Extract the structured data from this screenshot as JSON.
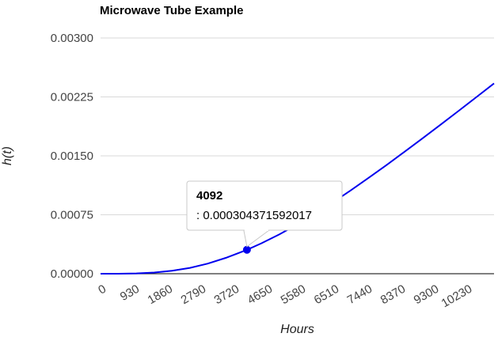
{
  "chart_data": {
    "type": "line",
    "title": "Microwave Tube Example",
    "xlabel": "Hours",
    "ylabel": "h(t)",
    "x_ticks": [
      "0",
      "930",
      "1860",
      "2790",
      "3720",
      "4650",
      "5580",
      "6510",
      "7440",
      "8370",
      "9300",
      "10230"
    ],
    "y_ticks": [
      "0.00000",
      "0.00075",
      "0.00150",
      "0.00225",
      "0.00300"
    ],
    "xlim": [
      0,
      11000
    ],
    "ylim": [
      0,
      0.003
    ],
    "grid": true,
    "series": [
      {
        "color": "#0000ee",
        "x": [
          0,
          500,
          1000,
          1500,
          2000,
          2500,
          3000,
          3500,
          4092,
          4500,
          5000,
          5500,
          6000,
          6500,
          7000,
          7500,
          8000,
          8500,
          9000,
          9500,
          10000,
          10500,
          11000
        ],
        "y": [
          0,
          4e-07,
          4.3e-06,
          1.54e-05,
          3.78e-05,
          7.49e-05,
          0.0001289,
          0.0002018,
          0.000304371592017,
          0.0003878,
          0.0005004,
          0.0006264,
          0.0007634,
          0.0009095,
          0.0010628,
          0.0012217,
          0.0013853,
          0.0015524,
          0.0017224,
          0.0018946,
          0.0020688,
          0.0022447,
          0.0024221
        ]
      }
    ],
    "tooltip": {
      "title": "4092",
      "value": ": 0.000304371592017",
      "x": 4092,
      "y": 0.000304371592017
    }
  }
}
